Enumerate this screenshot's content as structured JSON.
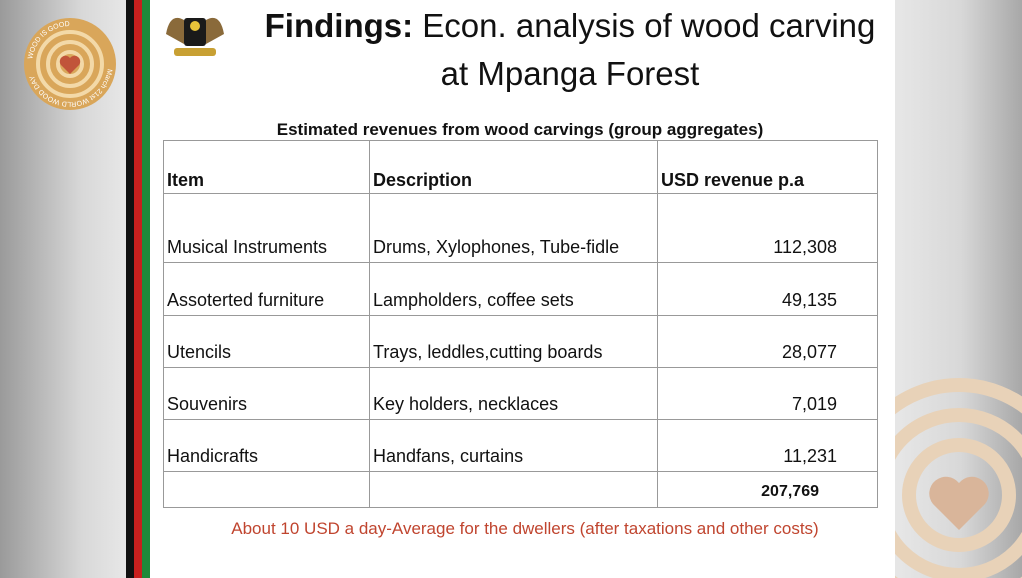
{
  "logo": {
    "top_text": "WOOD IS GOOD",
    "bottom_text": "March 21st WORLD WOOD DAY"
  },
  "header": {
    "title_bold": "Findings:",
    "title_rest": "Econ. analysis of wood carving at Mpanga Forest"
  },
  "table": {
    "caption": "Estimated revenues from wood carvings (group aggregates)",
    "columns": [
      "Item",
      "Description",
      "USD revenue p.a"
    ],
    "rows": [
      [
        "Musical Instruments",
        "Drums, Xylophones, Tube-fidle",
        "112,308"
      ],
      [
        "Assoterted furniture",
        "Lampholders, coffee sets",
        "49,135"
      ],
      [
        "Utencils",
        "Trays, leddles,cutting boards",
        "28,077"
      ],
      [
        "Souvenirs",
        "Key holders, necklaces",
        "7,019"
      ],
      [
        "Handicrafts",
        "Handfans, curtains",
        "11,231"
      ]
    ],
    "total": "207,769"
  },
  "footnote": "About 10 USD a day-Average for the dwellers (after taxations and other costs)"
}
